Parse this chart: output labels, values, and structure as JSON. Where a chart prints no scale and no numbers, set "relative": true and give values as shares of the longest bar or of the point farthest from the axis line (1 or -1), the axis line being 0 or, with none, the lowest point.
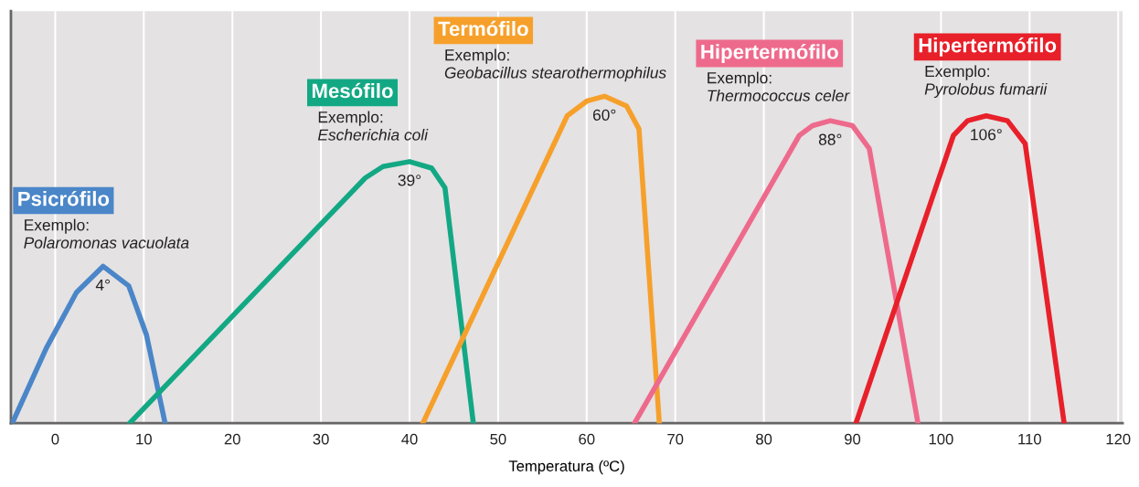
{
  "chart_data": {
    "type": "line",
    "relative": true,
    "xlabel": "Temperatura (ºC)",
    "xlim": [
      -5,
      120.5
    ],
    "xticks": [
      0,
      10,
      20,
      30,
      40,
      50,
      60,
      70,
      80,
      90,
      100,
      110,
      120
    ],
    "grid": "x",
    "legend": false,
    "marker": "none",
    "line_style": "solid",
    "series": [
      {
        "name": "Psicrófilo",
        "color": "#4a86c8",
        "x": [
          -4.85,
          -1.0,
          2.4,
          5.4,
          8.3,
          10.3,
          12.4
        ],
        "values": [
          0,
          0.23,
          0.4,
          0.48,
          0.42,
          0.27,
          0
        ]
      },
      {
        "name": "Mesófilo",
        "color": "#13a884",
        "x": [
          8.4,
          35,
          37,
          40,
          42.5,
          44,
          47.2
        ],
        "values": [
          0,
          0.75,
          0.785,
          0.8,
          0.78,
          0.72,
          0
        ]
      },
      {
        "name": "Termófilo",
        "color": "#f6a02b",
        "x": [
          41.5,
          57.8,
          60,
          62,
          64.5,
          65.9,
          68.2
        ],
        "values": [
          0,
          0.94,
          0.985,
          1,
          0.97,
          0.9,
          0
        ]
      },
      {
        "name": "Hipertermófilo",
        "color": "#ee6a8c",
        "x": [
          65.4,
          84,
          85.5,
          87.5,
          90,
          91.9,
          97.4
        ],
        "values": [
          0,
          0.88,
          0.91,
          0.925,
          0.91,
          0.84,
          0
        ]
      },
      {
        "name": "Hipertermófilo",
        "color": "#e8202a",
        "x": [
          90.4,
          101.4,
          103,
          105.1,
          107.5,
          109.5,
          113.9
        ],
        "values": [
          0,
          0.88,
          0.925,
          0.94,
          0.925,
          0.855,
          0
        ]
      }
    ],
    "annotations": [
      "Exemplo:",
      "Polaromonas vacuolata",
      {
        "text": "4°",
        "x": 5.4,
        "y": 0.48
      },
      "Exemplo:",
      "Escherichia coli",
      {
        "text": "39°",
        "x": 40,
        "y": 0.8
      },
      "Exemplo:",
      "Geobacillus stearothermophilus",
      {
        "text": "60°",
        "x": 62,
        "y": 1
      },
      "Exemplo:",
      "Thermococcus celer",
      {
        "text": "88°",
        "x": 87.5,
        "y": 0.925
      },
      "Exemplo:",
      "Pyrolobus fumarii",
      {
        "text": "106°",
        "x": 105.1,
        "y": 0.94
      }
    ]
  }
}
